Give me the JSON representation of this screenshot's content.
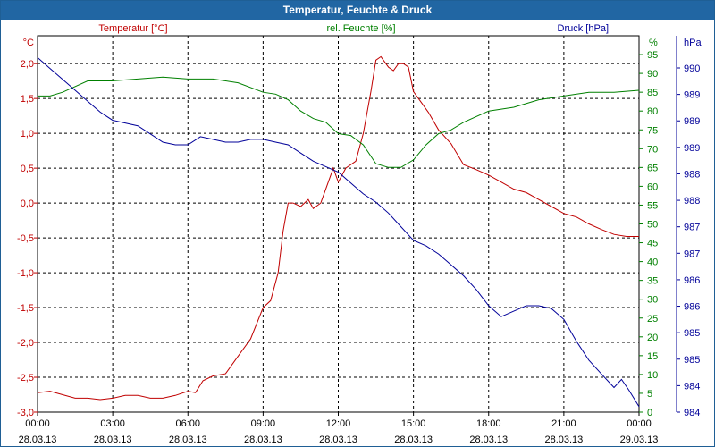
{
  "window": {
    "title": "Temperatur, Feuchte & Druck"
  },
  "colors": {
    "temp": "#c00000",
    "hum": "#008000",
    "press": "#000099",
    "grid": "#000000"
  },
  "chart_data": {
    "type": "line",
    "title": "Temperatur, Feuchte & Druck",
    "x_ticks": [
      {
        "time": "00:00",
        "date": "28.03.13"
      },
      {
        "time": "03:00",
        "date": "28.03.13"
      },
      {
        "time": "06:00",
        "date": "28.03.13"
      },
      {
        "time": "09:00",
        "date": "28.03.13"
      },
      {
        "time": "12:00",
        "date": "28.03.13"
      },
      {
        "time": "15:00",
        "date": "28.03.13"
      },
      {
        "time": "18:00",
        "date": "28.03.13"
      },
      {
        "time": "21:00",
        "date": "28.03.13"
      },
      {
        "time": "00:00",
        "date": "29.03.13"
      }
    ],
    "xlim": [
      0,
      24
    ],
    "axes": {
      "temp": {
        "unit": "°C",
        "label": "Temperatur [°C]",
        "ylim": [
          -3.0,
          2.4
        ],
        "ticks": [
          "2,0",
          "1,5",
          "1,0",
          "0,5",
          "0,0",
          "-0,5",
          "-1,0",
          "-1,5",
          "-2,0",
          "-2,5",
          "-3,0"
        ]
      },
      "hum": {
        "unit": "%",
        "label": "rel. Feuchte [%]",
        "ylim": [
          0,
          100
        ],
        "ticks": [
          "95",
          "90",
          "85",
          "80",
          "75",
          "70",
          "65",
          "60",
          "55",
          "50",
          "45",
          "40",
          "35",
          "30",
          "25",
          "20",
          "15",
          "10",
          "5",
          "0"
        ]
      },
      "press": {
        "unit": "hPa",
        "label": "Druck [hPa]",
        "ylim": [
          983.8,
          990.7
        ],
        "ticks": [
          "990",
          "989",
          "989",
          "989",
          "988",
          "988",
          "987",
          "987",
          "986",
          "986",
          "985",
          "985",
          "984",
          "984"
        ]
      }
    },
    "series": [
      {
        "name": "Temperatur [°C]",
        "axis": "temp",
        "x": [
          0,
          0.5,
          1,
          1.5,
          2,
          2.5,
          3,
          3.5,
          4,
          4.5,
          5,
          5.5,
          6,
          6.3,
          6.6,
          7,
          7.5,
          8,
          8.5,
          9,
          9.3,
          9.6,
          9.8,
          10,
          10.2,
          10.5,
          10.8,
          11,
          11.3,
          11.6,
          11.8,
          12,
          12.3,
          12.7,
          13,
          13.3,
          13.5,
          13.7,
          14,
          14.2,
          14.4,
          14.6,
          14.8,
          15,
          15.3,
          15.6,
          16,
          16.5,
          17,
          17.5,
          18,
          18.5,
          19,
          19.5,
          20,
          20.5,
          21,
          21.5,
          22,
          22.5,
          23,
          23.5,
          24
        ],
        "values": [
          -2.72,
          -2.7,
          -2.75,
          -2.8,
          -2.8,
          -2.82,
          -2.8,
          -2.76,
          -2.76,
          -2.8,
          -2.8,
          -2.76,
          -2.7,
          -2.72,
          -2.55,
          -2.48,
          -2.45,
          -2.2,
          -1.95,
          -1.5,
          -1.4,
          -1.0,
          -0.4,
          0.0,
          0.0,
          -0.05,
          0.05,
          -0.08,
          0.0,
          0.3,
          0.5,
          0.3,
          0.5,
          0.6,
          1.0,
          1.6,
          2.05,
          2.1,
          1.95,
          1.9,
          2.0,
          2.0,
          1.95,
          1.6,
          1.45,
          1.3,
          1.05,
          0.85,
          0.55,
          0.48,
          0.4,
          0.3,
          0.2,
          0.15,
          0.05,
          -0.05,
          -0.15,
          -0.2,
          -0.3,
          -0.38,
          -0.45,
          -0.48,
          -0.48
        ]
      },
      {
        "name": "rel. Feuchte [%]",
        "axis": "hum",
        "x": [
          0,
          0.5,
          1,
          2,
          3,
          4,
          5,
          6,
          7,
          8,
          9,
          9.5,
          10,
          10.5,
          11,
          11.5,
          12,
          12.5,
          13,
          13.5,
          14,
          14.5,
          15,
          15.5,
          16,
          16.5,
          17,
          18,
          19,
          20,
          21,
          22,
          23,
          24
        ],
        "values": [
          84,
          84,
          85,
          88,
          88,
          88.5,
          89,
          88.5,
          88.5,
          87.5,
          85,
          84.5,
          83,
          80,
          78,
          77,
          74,
          73.5,
          71,
          66,
          65,
          65,
          67,
          71,
          74,
          75,
          77,
          80,
          81,
          83,
          84,
          85,
          85,
          85.5
        ]
      },
      {
        "name": "Druck [hPa]",
        "axis": "press",
        "x": [
          0,
          0.5,
          1,
          1.5,
          2,
          2.5,
          3,
          3.5,
          4,
          4.5,
          5,
          5.5,
          6,
          6.5,
          7,
          7.5,
          8,
          8.5,
          9,
          9.5,
          10,
          10.5,
          11,
          11.5,
          12,
          12.5,
          13,
          13.5,
          14,
          14.5,
          15,
          15.5,
          16,
          16.5,
          17,
          17.5,
          18,
          18.5,
          19,
          19.5,
          20,
          20.5,
          21,
          21.5,
          22,
          22.5,
          23,
          23.3,
          23.6,
          24
        ],
        "values": [
          990.3,
          990.1,
          989.9,
          989.7,
          989.5,
          989.3,
          989.15,
          989.1,
          989.05,
          988.9,
          988.75,
          988.7,
          988.7,
          988.85,
          988.8,
          988.75,
          988.75,
          988.8,
          988.8,
          988.75,
          988.7,
          988.55,
          988.4,
          988.3,
          988.2,
          988.0,
          987.8,
          987.65,
          987.45,
          987.2,
          986.95,
          986.85,
          986.7,
          986.5,
          986.3,
          986.05,
          985.75,
          985.55,
          985.65,
          985.75,
          985.75,
          985.7,
          985.5,
          985.1,
          984.75,
          984.5,
          984.25,
          984.4,
          984.2,
          983.9
        ]
      }
    ]
  }
}
